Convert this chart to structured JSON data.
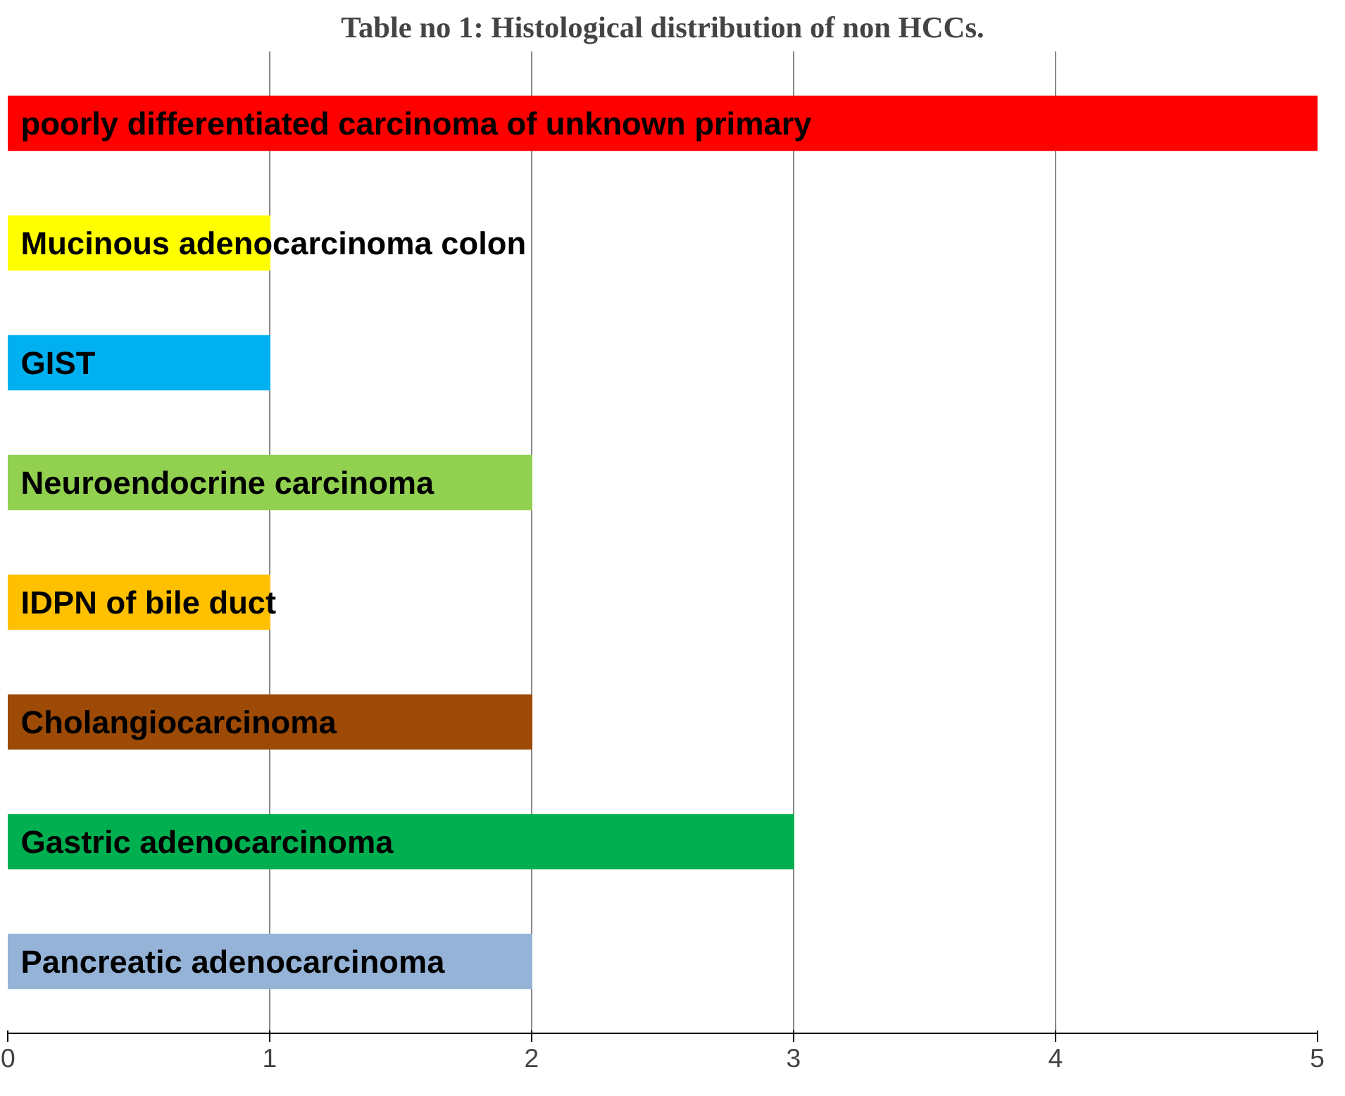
{
  "chart_data": {
    "type": "bar",
    "orientation": "horizontal",
    "title": "Table no 1: Histological distribution of non HCCs.",
    "categories": [
      "poorly differentiated carcinoma of unknown primary",
      "Mucinous adenocarcinoma colon",
      "GIST",
      "Neuroendocrine carcinoma",
      "IDPN of bile duct",
      "Cholangiocarcinoma",
      "Gastric adenocarcinoma",
      "Pancreatic adenocarcinoma"
    ],
    "values": [
      5,
      1,
      1,
      2,
      1,
      2,
      3,
      2
    ],
    "colors": [
      "#ff0000",
      "#ffff00",
      "#00b0f0",
      "#92d050",
      "#ffc000",
      "#9c4a06",
      "#00b050",
      "#95b3d7"
    ],
    "xlim": [
      0,
      5
    ],
    "xticks": [
      0,
      1,
      2,
      3,
      4,
      5
    ],
    "grid": "x",
    "tick_labels": "x"
  }
}
